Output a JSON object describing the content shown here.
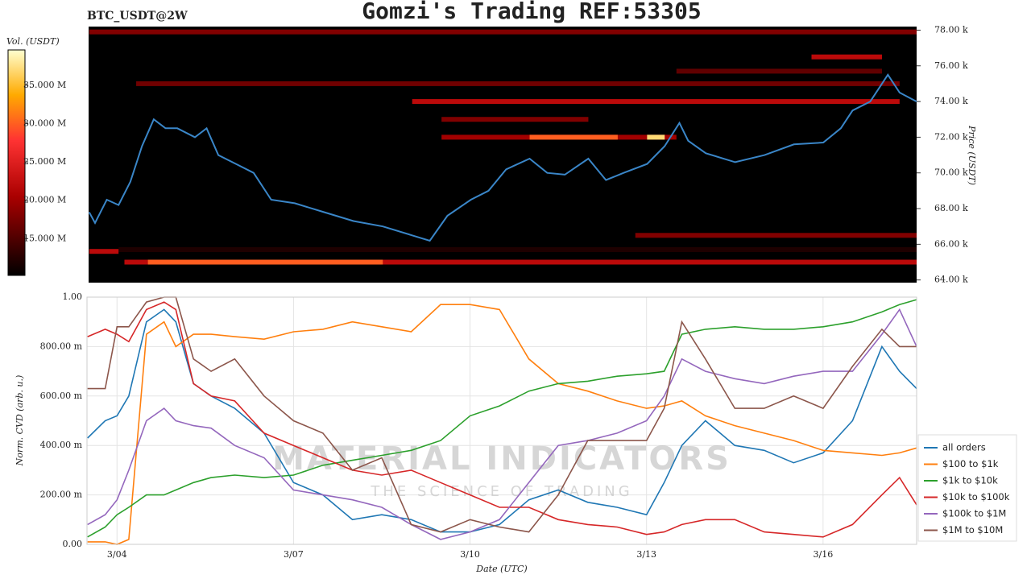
{
  "watermark": [
    "MATERIAL INDICATORS",
    "THE SCIENCE OF TRADING"
  ],
  "chart_data": [
    {
      "type": "heatmap",
      "title": "Gomzi's Trading REF:53305",
      "subtitle": "BTC_USDT@2W",
      "ylabel": "Price (USDT)",
      "colorbar_label": "Vol. (USDT)",
      "xlim": [
        3.49,
        17.59
      ],
      "ylim": [
        63850,
        78200
      ],
      "yticks": [
        {
          "value": 64000,
          "label": "64.00 k"
        },
        {
          "value": 66000,
          "label": "66.00 k"
        },
        {
          "value": 68000,
          "label": "68.00 k"
        },
        {
          "value": 70000,
          "label": "70.00 k"
        },
        {
          "value": 72000,
          "label": "72.00 k"
        },
        {
          "value": 74000,
          "label": "74.00 k"
        },
        {
          "value": 76000,
          "label": "76.00 k"
        },
        {
          "value": 78000,
          "label": "78.00 k"
        }
      ],
      "clim": [
        10200000,
        39600000
      ],
      "cticks": [
        {
          "value": 15000000,
          "label": "15.000 M"
        },
        {
          "value": 20000000,
          "label": "20.000 M"
        },
        {
          "value": 25000000,
          "label": "25.000 M"
        },
        {
          "value": 30000000,
          "label": "30.000 M"
        },
        {
          "value": 35000000,
          "label": "35.000 M"
        }
      ],
      "cells": [
        {
          "x": [
            3.5,
            17.59
          ],
          "y": 77900,
          "volume": 18000000
        },
        {
          "x": [
            4.3,
            17.3
          ],
          "y": 75000,
          "volume": 17000000
        },
        {
          "x": [
            13.5,
            17.0
          ],
          "y": 75700,
          "volume": 16000000
        },
        {
          "x": [
            15.8,
            17.0
          ],
          "y": 76500,
          "volume": 22000000
        },
        {
          "x": [
            9.0,
            17.3
          ],
          "y": 74000,
          "volume": 22000000
        },
        {
          "x": [
            9.5,
            12.0
          ],
          "y": 73000,
          "volume": 18000000
        },
        {
          "x": [
            9.5,
            13.5
          ],
          "y": 72000,
          "volume": 20000000
        },
        {
          "x": [
            11.0,
            12.5
          ],
          "y": 72000,
          "volume": 30000000
        },
        {
          "x": [
            13.0,
            13.3
          ],
          "y": 72000,
          "volume": 37000000
        },
        {
          "x": [
            12.8,
            17.59
          ],
          "y": 66500,
          "volume": 18000000
        },
        {
          "x": [
            4.0,
            17.59
          ],
          "y": 65700,
          "volume": 12000000
        },
        {
          "x": [
            3.5,
            4.0
          ],
          "y": 65600,
          "volume": 22000000
        },
        {
          "x": [
            4.1,
            17.59
          ],
          "y": 65000,
          "volume": 22000000
        },
        {
          "x": [
            4.5,
            8.5
          ],
          "y": 65000,
          "volume": 30000000
        }
      ],
      "price": {
        "color": "#3a86c8",
        "x": [
          3.5,
          3.6,
          3.8,
          4.0,
          4.2,
          4.4,
          4.6,
          4.8,
          5.0,
          5.3,
          5.5,
          5.7,
          6.0,
          6.3,
          6.6,
          7.0,
          7.5,
          8.0,
          8.5,
          9.0,
          9.3,
          9.6,
          10.0,
          10.3,
          10.6,
          11.0,
          11.3,
          11.6,
          12.0,
          12.3,
          12.6,
          13.0,
          13.3,
          13.55,
          13.7,
          14.0,
          14.5,
          15.0,
          15.5,
          16.0,
          16.3,
          16.5,
          16.8,
          17.1,
          17.3,
          17.59
        ],
        "values": [
          67800,
          67200,
          68500,
          68200,
          69500,
          71500,
          73000,
          72500,
          72500,
          72000,
          72500,
          71000,
          70500,
          70000,
          68500,
          68300,
          67800,
          67300,
          67000,
          66500,
          66200,
          67600,
          68500,
          69000,
          70200,
          70800,
          70000,
          69900,
          70800,
          69600,
          70000,
          70500,
          71500,
          72800,
          71800,
          71100,
          70600,
          71000,
          71600,
          71700,
          72500,
          73500,
          74000,
          75500,
          74500,
          74000
        ]
      }
    },
    {
      "type": "line",
      "xlabel": "Date (UTC)",
      "ylabel": "Norm. CVD (arb. u.)",
      "xlim": [
        3.49,
        17.59
      ],
      "ylim": [
        0,
        1
      ],
      "xticks": [
        {
          "value": 4,
          "label": "3/04"
        },
        {
          "value": 7,
          "label": "3/07"
        },
        {
          "value": 10,
          "label": "3/10"
        },
        {
          "value": 13,
          "label": "3/13"
        },
        {
          "value": 16,
          "label": "3/16"
        }
      ],
      "yticks": [
        {
          "value": 0,
          "label": "0.00"
        },
        {
          "value": 0.2,
          "label": "200.00 m"
        },
        {
          "value": 0.4,
          "label": "400.00 m"
        },
        {
          "value": 0.6,
          "label": "600.00 m"
        },
        {
          "value": 0.8,
          "label": "800.00 m"
        },
        {
          "value": 1,
          "label": "1.00"
        }
      ],
      "grid": true,
      "legend": "lower right",
      "x": [
        3.5,
        3.8,
        4.0,
        4.2,
        4.5,
        4.8,
        5.0,
        5.3,
        5.6,
        6.0,
        6.5,
        7.0,
        7.5,
        8.0,
        8.5,
        9.0,
        9.5,
        10.0,
        10.5,
        11.0,
        11.5,
        12.0,
        12.5,
        13.0,
        13.3,
        13.6,
        14.0,
        14.5,
        15.0,
        15.5,
        16.0,
        16.5,
        17.0,
        17.3,
        17.59
      ],
      "series": [
        {
          "name": "all orders",
          "color": "#1f77b4",
          "values": [
            0.43,
            0.5,
            0.52,
            0.6,
            0.9,
            0.95,
            0.9,
            0.65,
            0.6,
            0.55,
            0.45,
            0.25,
            0.2,
            0.1,
            0.12,
            0.1,
            0.05,
            0.05,
            0.08,
            0.18,
            0.22,
            0.17,
            0.15,
            0.12,
            0.25,
            0.4,
            0.5,
            0.4,
            0.38,
            0.33,
            0.37,
            0.5,
            0.8,
            0.7,
            0.63
          ]
        },
        {
          "name": "$100 to $1k",
          "color": "#ff7f0e",
          "values": [
            0.01,
            0.01,
            0.0,
            0.02,
            0.85,
            0.9,
            0.8,
            0.85,
            0.85,
            0.84,
            0.83,
            0.86,
            0.87,
            0.9,
            0.88,
            0.86,
            0.97,
            0.97,
            0.95,
            0.75,
            0.65,
            0.62,
            0.58,
            0.55,
            0.56,
            0.58,
            0.52,
            0.48,
            0.45,
            0.42,
            0.38,
            0.37,
            0.36,
            0.37,
            0.39
          ]
        },
        {
          "name": "$1k to $10k",
          "color": "#2ca02c",
          "values": [
            0.03,
            0.07,
            0.12,
            0.15,
            0.2,
            0.2,
            0.22,
            0.25,
            0.27,
            0.28,
            0.27,
            0.28,
            0.32,
            0.34,
            0.36,
            0.38,
            0.42,
            0.52,
            0.56,
            0.62,
            0.65,
            0.66,
            0.68,
            0.69,
            0.7,
            0.85,
            0.87,
            0.88,
            0.87,
            0.87,
            0.88,
            0.9,
            0.94,
            0.97,
            0.99
          ]
        },
        {
          "name": "$10k to $100k",
          "color": "#d62728",
          "values": [
            0.84,
            0.87,
            0.85,
            0.82,
            0.95,
            0.98,
            0.95,
            0.65,
            0.6,
            0.58,
            0.45,
            0.4,
            0.35,
            0.3,
            0.28,
            0.3,
            0.25,
            0.2,
            0.15,
            0.15,
            0.1,
            0.08,
            0.07,
            0.04,
            0.05,
            0.08,
            0.1,
            0.1,
            0.05,
            0.04,
            0.03,
            0.08,
            0.2,
            0.27,
            0.16
          ]
        },
        {
          "name": "$100k to $1M",
          "color": "#9467bd",
          "values": [
            0.08,
            0.12,
            0.18,
            0.3,
            0.5,
            0.55,
            0.5,
            0.48,
            0.47,
            0.4,
            0.35,
            0.22,
            0.2,
            0.18,
            0.15,
            0.08,
            0.02,
            0.05,
            0.1,
            0.25,
            0.4,
            0.42,
            0.45,
            0.5,
            0.6,
            0.75,
            0.7,
            0.67,
            0.65,
            0.68,
            0.7,
            0.7,
            0.85,
            0.95,
            0.8
          ]
        },
        {
          "name": "$1M to $10M",
          "color": "#8c564b",
          "values": [
            0.63,
            0.63,
            0.88,
            0.88,
            0.98,
            1.0,
            1.0,
            0.75,
            0.7,
            0.75,
            0.6,
            0.5,
            0.45,
            0.3,
            0.35,
            0.08,
            0.05,
            0.1,
            0.07,
            0.05,
            0.2,
            0.42,
            0.42,
            0.42,
            0.55,
            0.9,
            0.75,
            0.55,
            0.55,
            0.6,
            0.55,
            0.72,
            0.87,
            0.8,
            0.8
          ]
        }
      ]
    }
  ]
}
